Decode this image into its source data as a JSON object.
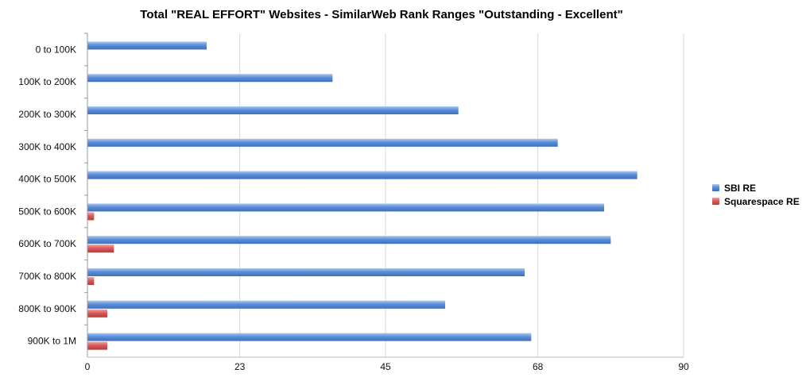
{
  "chart_data": {
    "type": "bar",
    "orientation": "horizontal",
    "title": "Total \"REAL EFFORT\" Websites - SimilarWeb Rank Ranges \"Outstanding - Excellent\"",
    "categories": [
      "0 to 100K",
      "100K to 200K",
      "200K to 300K",
      "300K to 400K",
      "400K to 500K",
      "500K to 600K",
      "600K to 700K",
      "700K to 800K",
      "800K to 900K",
      "900K to 1M"
    ],
    "series": [
      {
        "name": "SBI RE",
        "color": "#5b8ed6",
        "values": [
          18,
          37,
          56,
          71,
          83,
          78,
          79,
          66,
          54,
          67
        ]
      },
      {
        "name": "Squarespace RE",
        "color": "#d95a5a",
        "values": [
          0,
          0,
          0,
          0,
          0,
          1,
          4,
          1,
          3,
          3
        ]
      }
    ],
    "x_ticks": [
      0,
      23,
      45,
      68,
      90
    ],
    "x_tick_labels": [
      "0",
      "23",
      "45",
      "68",
      "90"
    ],
    "xlim": [
      0,
      90
    ],
    "grid": true,
    "legend_position": "right"
  }
}
